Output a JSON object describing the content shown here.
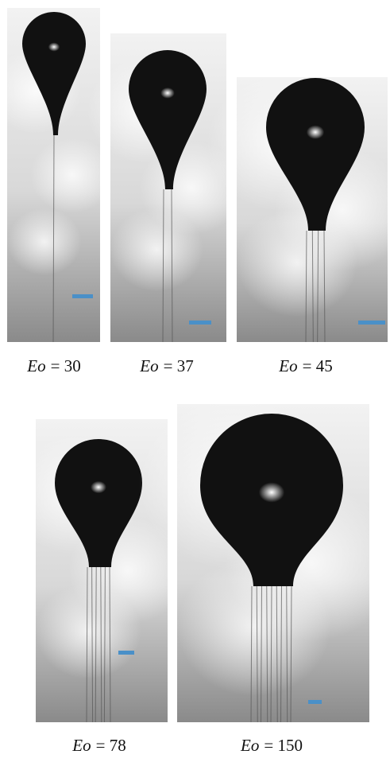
{
  "panels": [
    {
      "label": {
        "symbol": "Eo",
        "equals": "= 30"
      }
    },
    {
      "label": {
        "symbol": "Eo",
        "equals": "= 37"
      }
    },
    {
      "label": {
        "symbol": "Eo",
        "equals": "= 45"
      }
    },
    {
      "label": {
        "symbol": "Eo",
        "equals": "= 78"
      }
    },
    {
      "label": {
        "symbol": "Eo",
        "equals": "= 150"
      }
    }
  ]
}
